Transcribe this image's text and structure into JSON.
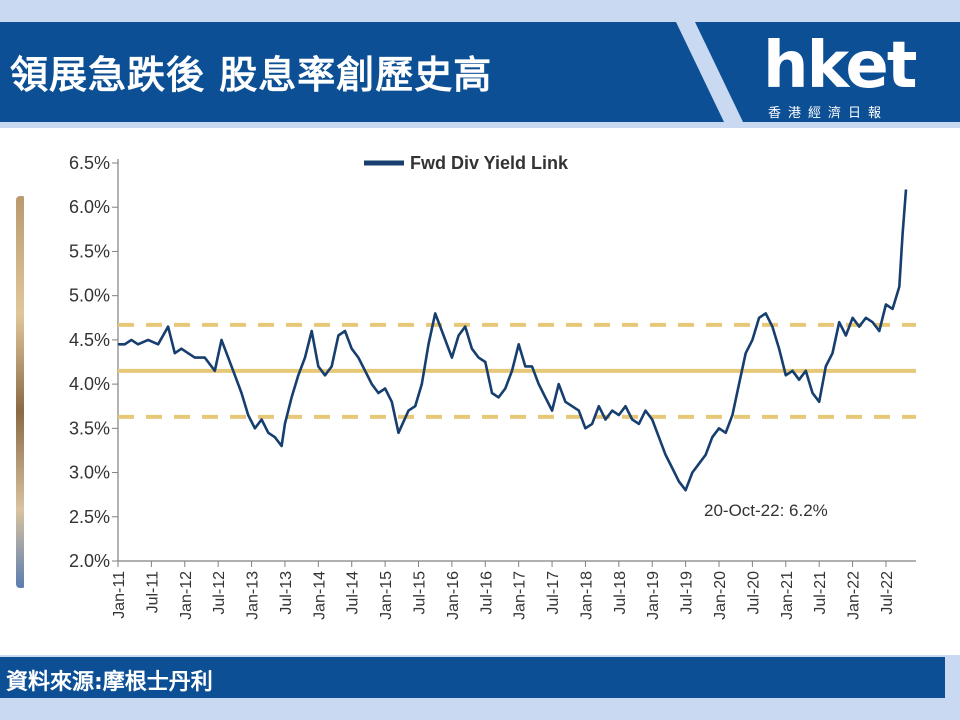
{
  "header": {
    "title": "領展急跌後 股息率創歷史高",
    "logo_text": "hket",
    "logo_subtitle": "香港經濟日報"
  },
  "footer": {
    "source_text": "資料來源:摩根士丹利"
  },
  "colors": {
    "header_bg": "#0c4f95",
    "series_line": "#163e6e",
    "reference_lines": "#e7c879",
    "page_bg": "#c9d9f2"
  },
  "chart_data": {
    "type": "line",
    "title": "",
    "xlabel": "",
    "ylabel": "",
    "ylim": [
      2.0,
      6.5
    ],
    "ytick_labels": [
      "6.5%",
      "6.0%",
      "5.5%",
      "5.0%",
      "4.5%",
      "4.0%",
      "3.5%",
      "3.0%",
      "2.5%",
      "2.0%"
    ],
    "xtick_labels": [
      "Jan-11",
      "Jul-11",
      "Jan-12",
      "Jul-12",
      "Jan-13",
      "Jul-13",
      "Jan-14",
      "Jul-14",
      "Jan-15",
      "Jul-15",
      "Jan-16",
      "Jul-16",
      "Jan-17",
      "Jul-17",
      "Jan-18",
      "Jul-18",
      "Jan-19",
      "Jul-19",
      "Jan-20",
      "Jul-20",
      "Jan-21",
      "Jul-21",
      "Jan-22",
      "Jul-22"
    ],
    "legend": {
      "label": "Fwd Div Yield Link",
      "position": "top"
    },
    "annotation": "20-Oct-22: 6.2%",
    "grid": false,
    "reference_lines": [
      {
        "style": "dashed",
        "value": 4.67
      },
      {
        "style": "solid",
        "value": 4.15
      },
      {
        "style": "dashed",
        "value": 3.63
      }
    ],
    "series": [
      {
        "name": "Fwd Div Yield Link",
        "x": [
          2011.0,
          2011.1,
          2011.2,
          2011.3,
          2011.45,
          2011.6,
          2011.75,
          2011.85,
          2011.95,
          2012.05,
          2012.15,
          2012.3,
          2012.45,
          2012.55,
          2012.65,
          2012.75,
          2012.85,
          2012.95,
          2013.05,
          2013.15,
          2013.25,
          2013.35,
          2013.45,
          2013.5,
          2013.6,
          2013.7,
          2013.8,
          2013.9,
          2014.0,
          2014.1,
          2014.2,
          2014.3,
          2014.4,
          2014.5,
          2014.6,
          2014.7,
          2014.8,
          2014.9,
          2015.0,
          2015.1,
          2015.2,
          2015.35,
          2015.45,
          2015.55,
          2015.65,
          2015.75,
          2015.85,
          2016.0,
          2016.1,
          2016.2,
          2016.3,
          2016.4,
          2016.5,
          2016.6,
          2016.7,
          2016.8,
          2016.9,
          2017.0,
          2017.1,
          2017.2,
          2017.3,
          2017.4,
          2017.5,
          2017.6,
          2017.7,
          2017.8,
          2017.9,
          2018.0,
          2018.1,
          2018.2,
          2018.3,
          2018.4,
          2018.5,
          2018.6,
          2018.7,
          2018.8,
          2018.9,
          2019.0,
          2019.1,
          2019.2,
          2019.3,
          2019.4,
          2019.5,
          2019.6,
          2019.7,
          2019.8,
          2019.9,
          2020.0,
          2020.1,
          2020.2,
          2020.3,
          2020.4,
          2020.5,
          2020.6,
          2020.7,
          2020.8,
          2020.9,
          2021.0,
          2021.1,
          2021.2,
          2021.3,
          2021.4,
          2021.5,
          2021.6,
          2021.7,
          2021.8,
          2021.9,
          2022.0,
          2022.1,
          2022.2,
          2022.3,
          2022.4,
          2022.5,
          2022.6,
          2022.7,
          2022.75,
          2022.8
        ],
        "y": [
          4.45,
          4.45,
          4.5,
          4.45,
          4.5,
          4.45,
          4.65,
          4.35,
          4.4,
          4.35,
          4.3,
          4.3,
          4.15,
          4.5,
          4.3,
          4.1,
          3.9,
          3.65,
          3.5,
          3.6,
          3.45,
          3.4,
          3.3,
          3.55,
          3.85,
          4.1,
          4.3,
          4.6,
          4.2,
          4.1,
          4.2,
          4.55,
          4.6,
          4.4,
          4.3,
          4.15,
          4.0,
          3.9,
          3.95,
          3.8,
          3.45,
          3.7,
          3.75,
          4.0,
          4.45,
          4.8,
          4.6,
          4.3,
          4.55,
          4.65,
          4.4,
          4.3,
          4.25,
          3.9,
          3.85,
          3.95,
          4.15,
          4.45,
          4.2,
          4.2,
          4.0,
          3.85,
          3.7,
          4.0,
          3.8,
          3.75,
          3.7,
          3.5,
          3.55,
          3.75,
          3.6,
          3.7,
          3.65,
          3.75,
          3.6,
          3.55,
          3.7,
          3.6,
          3.4,
          3.2,
          3.05,
          2.9,
          2.8,
          3.0,
          3.1,
          3.2,
          3.4,
          3.5,
          3.45,
          3.65,
          4.0,
          4.35,
          4.5,
          4.75,
          4.8,
          4.65,
          4.4,
          4.1,
          4.15,
          4.05,
          4.15,
          3.9,
          3.8,
          4.2,
          4.35,
          4.7,
          4.55,
          4.75,
          4.65,
          4.75,
          4.7,
          4.6,
          4.9,
          4.85,
          5.1,
          5.7,
          6.2
        ]
      }
    ]
  }
}
